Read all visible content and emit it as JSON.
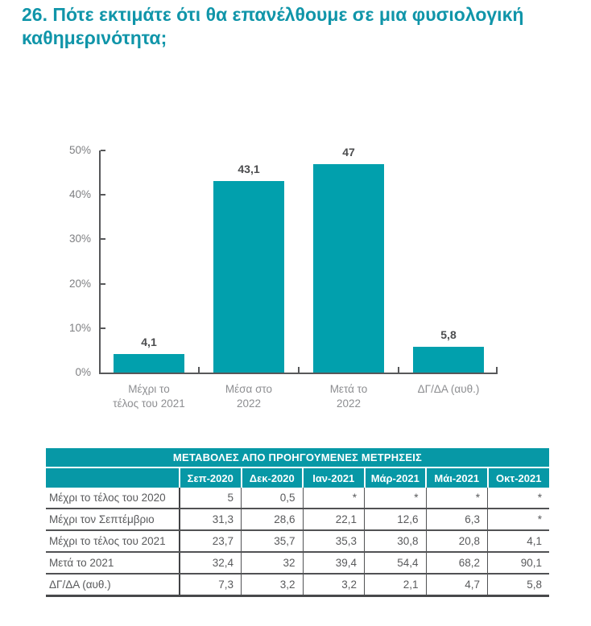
{
  "title": "26. Πότε εκτιμάτε ότι θα επανέλθουμε σε μια φυσιολογική καθημερινότητα;",
  "colors": {
    "accent_text": "#1095a9",
    "bar_fill": "#01a0ad",
    "table_header_bg": "#0798a6",
    "axis": "#57585a",
    "muted_text": "#8d8e91"
  },
  "chart_data": {
    "type": "bar",
    "categories": [
      "Μέχρι το\nτέλος του 2021",
      "Μέσα στο\n2022",
      "Μετά το\n2022",
      "ΔΓ/ΔΑ (αυθ.)"
    ],
    "values": [
      4.1,
      43.1,
      47,
      5.8
    ],
    "value_labels": [
      "4,1",
      "43,1",
      "47",
      "5,8"
    ],
    "title": "",
    "xlabel": "",
    "ylabel": "",
    "ylim": [
      0,
      50
    ],
    "yticks": [
      "0%",
      "10%",
      "20%",
      "30%",
      "40%",
      "50%"
    ],
    "grid": false,
    "legend": false
  },
  "table": {
    "title": "ΜΕΤΑΒΟΛΕΣ ΑΠΟ ΠΡΟΗΓΟΥΜΕΝΕΣ ΜΕΤΡΗΣΕΙΣ",
    "columns": [
      "Σεπ-2020",
      "Δεκ-2020",
      "Ιαν-2021",
      "Μάρ-2021",
      "Μάι-2021",
      "Οκτ-2021"
    ],
    "rows": [
      {
        "label": "Μέχρι το τέλος του 2020",
        "values": [
          "5",
          "0,5",
          "*",
          "*",
          "*",
          "*"
        ]
      },
      {
        "label": "Μέχρι τον Σεπτέμβριο",
        "values": [
          "31,3",
          "28,6",
          "22,1",
          "12,6",
          "6,3",
          "*"
        ]
      },
      {
        "label": "Μέχρι το τέλος του 2021",
        "values": [
          "23,7",
          "35,7",
          "35,3",
          "30,8",
          "20,8",
          "4,1"
        ]
      },
      {
        "label": "Μετά το 2021",
        "values": [
          "32,4",
          "32",
          "39,4",
          "54,4",
          "68,2",
          "90,1"
        ]
      },
      {
        "label": "ΔΓ/ΔΑ (αυθ.)",
        "values": [
          "7,3",
          "3,2",
          "3,2",
          "2,1",
          "4,7",
          "5,8"
        ]
      }
    ]
  }
}
